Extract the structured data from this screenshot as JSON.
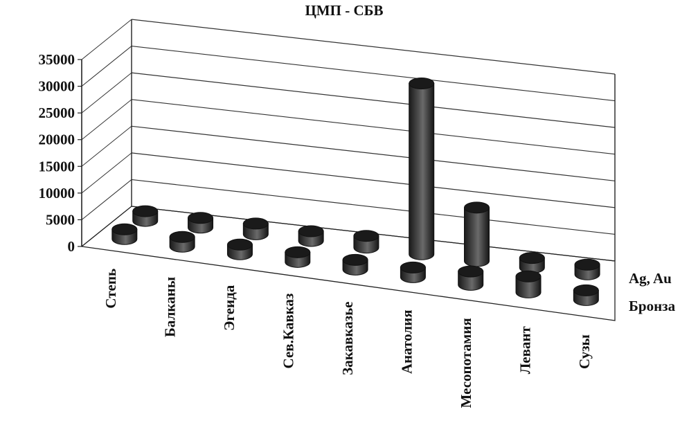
{
  "chart_data": {
    "type": "bar",
    "title": "ЦМП - СБВ",
    "categories": [
      "Степь",
      "Балканы",
      "Эгеида",
      "Сев.Кавказ",
      "Закавказье",
      "Анатолия",
      "Месопотамия",
      "Левант",
      "Сузы"
    ],
    "series": [
      {
        "name": "Бронза",
        "values": [
          1500,
          1000,
          1200,
          1300,
          700,
          1200,
          2500,
          3000,
          1100
        ]
      },
      {
        "name": "Ag, Au",
        "values": [
          400,
          300,
          2000,
          300,
          2200,
          32000,
          10000,
          900,
          200
        ]
      }
    ],
    "ylim": [
      0,
      35000
    ],
    "yticks": [
      "0",
      "5000",
      "10000",
      "15000",
      "20000",
      "25000",
      "30000",
      "35000"
    ],
    "grid": true,
    "style": "3d-cylinder"
  },
  "colors": {
    "bar_fill": "#2a2a2a",
    "bar_top": "#1a1a1a",
    "grid": "#333333",
    "axis": "#222222"
  }
}
